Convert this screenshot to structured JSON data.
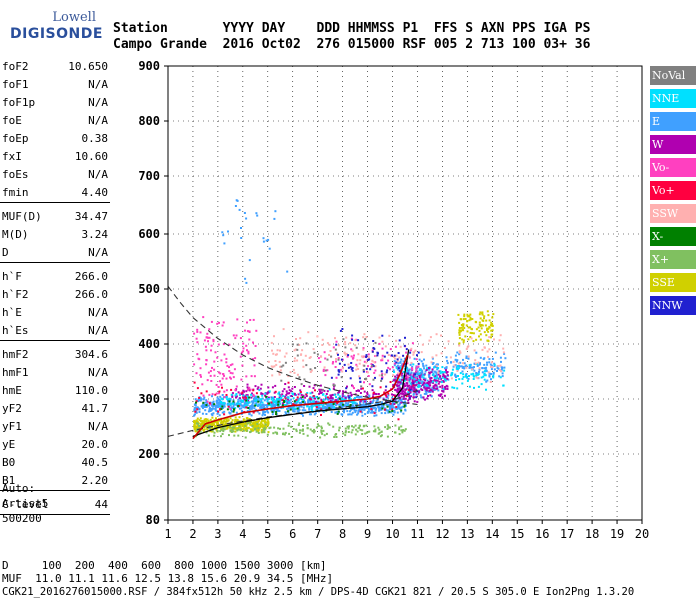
{
  "logo": {
    "line1": "Lowell",
    "line2": "DIGISONDE"
  },
  "header": {
    "labels": "Station       YYYY DAY    DDD HHMMSS P1  FFS S AXN PPS IGA PS",
    "values": "Campo Grande  2016 Oct02  276 015000 RSF 005 2 713 100 03+ 36"
  },
  "params": [
    {
      "label": "foF2",
      "value": "10.650"
    },
    {
      "label": "foF1",
      "value": "N/A"
    },
    {
      "label": "foF1p",
      "value": "N/A"
    },
    {
      "label": "foE",
      "value": "N/A"
    },
    {
      "label": "foEp",
      "value": "0.38"
    },
    {
      "label": "fxI",
      "value": "10.60"
    },
    {
      "label": "foEs",
      "value": "N/A"
    },
    {
      "label": "fmin",
      "value": "4.40"
    },
    {
      "label": "MUF(D)",
      "value": "34.47"
    },
    {
      "label": "M(D)",
      "value": "3.24"
    },
    {
      "label": "D",
      "value": "N/A"
    },
    {
      "label": "h`F",
      "value": "266.0"
    },
    {
      "label": "h`F2",
      "value": "266.0"
    },
    {
      "label": "h`E",
      "value": "N/A"
    },
    {
      "label": "h`Es",
      "value": "N/A"
    },
    {
      "label": "hmF2",
      "value": "304.6"
    },
    {
      "label": "hmF1",
      "value": "N/A"
    },
    {
      "label": "hmE",
      "value": "110.0"
    },
    {
      "label": "yF2",
      "value": "41.7"
    },
    {
      "label": "yF1",
      "value": "N/A"
    },
    {
      "label": "yE",
      "value": "20.0"
    },
    {
      "label": "B0",
      "value": "40.5"
    },
    {
      "label": "B1",
      "value": "2.20"
    },
    {
      "label": "C-level",
      "value": "44"
    }
  ],
  "auto": [
    "Auto:",
    "Artist5",
    "500200"
  ],
  "legend": [
    {
      "label": "NoVal",
      "color": "#808080"
    },
    {
      "label": "NNE",
      "color": "#00e0ff"
    },
    {
      "label": "E",
      "color": "#40a0ff"
    },
    {
      "label": "W",
      "color": "#b000b0"
    },
    {
      "label": "Vo-",
      "color": "#ff40c0"
    },
    {
      "label": "Vo+",
      "color": "#ff0040"
    },
    {
      "label": "SSW",
      "color": "#ffb0b0"
    },
    {
      "label": "X-",
      "color": "#008000"
    },
    {
      "label": "X+",
      "color": "#80c060"
    },
    {
      "label": "SSE",
      "color": "#d0d000"
    },
    {
      "label": "NNW",
      "color": "#2020d0"
    }
  ],
  "footer": {
    "d_line": "D     100  200  400  600  800 1000 1500 3000 [km]",
    "muf_line": "MUF  11.0 11.1 11.6 12.5 13.8 15.6 20.9 34.5 [MHz]",
    "file_line": "CGK21_2016276015000.RSF / 384fx512h 50 kHz 2.5 km / DPS-4D CGK21 821 / 20.5 S 305.0 E Ion2Png 1.3.20"
  },
  "chart_data": {
    "type": "scatter",
    "xlim": [
      1,
      20
    ],
    "ylim": [
      80,
      900
    ],
    "x_ticks": [
      1,
      2,
      3,
      4,
      5,
      6,
      7,
      8,
      9,
      10,
      11,
      12,
      13,
      14,
      15,
      16,
      17,
      18,
      19,
      20
    ],
    "y_ticks": [
      80,
      200,
      300,
      400,
      500,
      600,
      700,
      800,
      900
    ],
    "grid": "dotted",
    "legend_position": "right",
    "clusters": [
      {
        "series": "E",
        "x": [
          2.0,
          10.5
        ],
        "y": [
          270,
          310
        ],
        "count": 900
      },
      {
        "series": "E",
        "x": [
          10.0,
          11.8
        ],
        "y": [
          300,
          380
        ],
        "count": 260
      },
      {
        "series": "E",
        "x": [
          12.0,
          14.5
        ],
        "y": [
          330,
          390
        ],
        "count": 120
      },
      {
        "series": "SSE",
        "x": [
          2.0,
          5.0
        ],
        "y": [
          240,
          270
        ],
        "count": 420
      },
      {
        "series": "SSE",
        "x": [
          12.6,
          14.0
        ],
        "y": [
          395,
          470
        ],
        "count": 110
      },
      {
        "series": "W",
        "x": [
          3.5,
          11.0
        ],
        "y": [
          290,
          330
        ],
        "count": 220
      },
      {
        "series": "W",
        "x": [
          10.0,
          12.2
        ],
        "y": [
          300,
          360
        ],
        "count": 220
      },
      {
        "series": "NNE",
        "x": [
          3.0,
          8.5
        ],
        "y": [
          280,
          320
        ],
        "count": 150
      },
      {
        "series": "NNE",
        "x": [
          10.0,
          14.5
        ],
        "y": [
          310,
          370
        ],
        "count": 110
      },
      {
        "series": "Vo-",
        "x": [
          2.0,
          4.5
        ],
        "y": [
          280,
          460
        ],
        "count": 130
      },
      {
        "series": "Vo-",
        "x": [
          7.0,
          11.0
        ],
        "y": [
          310,
          420
        ],
        "count": 90
      },
      {
        "series": "SSW",
        "x": [
          5.0,
          14.5
        ],
        "y": [
          330,
          430
        ],
        "count": 190
      },
      {
        "series": "X+",
        "x": [
          2.0,
          10.5
        ],
        "y": [
          230,
          260
        ],
        "count": 200
      },
      {
        "series": "Vo+",
        "x": [
          2.0,
          10.8
        ],
        "y": [
          260,
          340
        ],
        "count": 70
      },
      {
        "series": "NNW",
        "x": [
          7.5,
          11.2
        ],
        "y": [
          290,
          440
        ],
        "count": 80
      },
      {
        "series": "X-",
        "x": [
          2.0,
          10.5
        ],
        "y": [
          270,
          310
        ],
        "count": 60
      },
      {
        "series": "NoVal",
        "x": [
          5.5,
          10.0
        ],
        "y": [
          300,
          440
        ],
        "count": 40
      },
      {
        "series": "E",
        "x": [
          3.0,
          6.0
        ],
        "y": [
          500,
          690
        ],
        "count": 25
      }
    ],
    "trace_red": [
      [
        2.0,
        228
      ],
      [
        2.5,
        255
      ],
      [
        3.0,
        262
      ],
      [
        4.0,
        275
      ],
      [
        5.0,
        282
      ],
      [
        6.0,
        288
      ],
      [
        7.0,
        292
      ],
      [
        8.0,
        296
      ],
      [
        9.0,
        300
      ],
      [
        9.5,
        305
      ],
      [
        10.0,
        318
      ],
      [
        10.3,
        345
      ],
      [
        10.6,
        380
      ]
    ],
    "trace_profile": [
      [
        2.0,
        232
      ],
      [
        3.0,
        248
      ],
      [
        4.0,
        258
      ],
      [
        5.0,
        266
      ],
      [
        6.0,
        272
      ],
      [
        7.0,
        278
      ],
      [
        8.0,
        282
      ],
      [
        9.0,
        286
      ],
      [
        9.5,
        290
      ],
      [
        10.0,
        296
      ],
      [
        10.4,
        320
      ],
      [
        10.65,
        390
      ]
    ],
    "curve_dashed_upper": [
      [
        1.0,
        505
      ],
      [
        1.5,
        475
      ],
      [
        2.0,
        448
      ],
      [
        3.0,
        410
      ],
      [
        4.0,
        380
      ],
      [
        5.0,
        357
      ],
      [
        6.0,
        340
      ],
      [
        7.0,
        325
      ],
      [
        8.0,
        313
      ],
      [
        9.0,
        303
      ],
      [
        10.0,
        296
      ],
      [
        11.0,
        290
      ]
    ],
    "curve_dashed_lower": [
      [
        1.0,
        232
      ],
      [
        2.0,
        243
      ],
      [
        3.0,
        252
      ],
      [
        4.0,
        260
      ],
      [
        5.0,
        267
      ],
      [
        6.0,
        273
      ],
      [
        7.0,
        279
      ],
      [
        8.0,
        285
      ],
      [
        9.0,
        291
      ],
      [
        10.0,
        298
      ],
      [
        10.5,
        306
      ],
      [
        11.0,
        316
      ]
    ]
  }
}
